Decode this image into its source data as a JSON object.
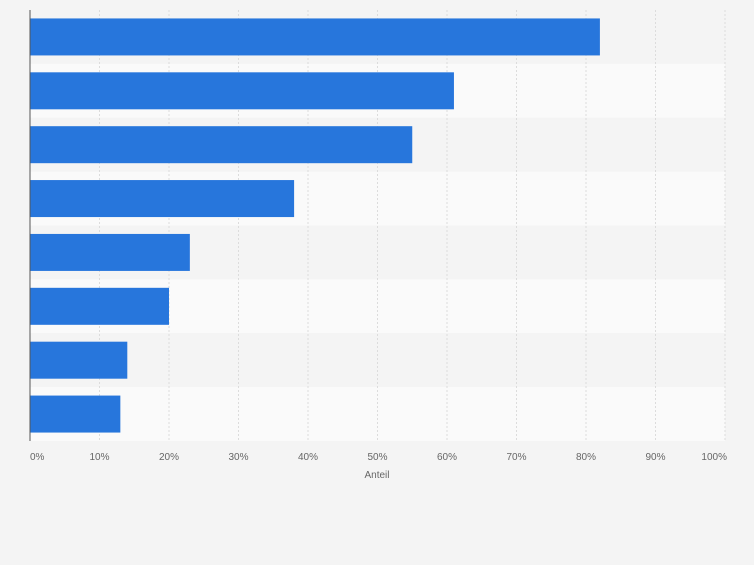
{
  "chart_data": {
    "type": "bar",
    "orientation": "horizontal",
    "categories": [
      "",
      "",
      "",
      "",
      "",
      "",
      "",
      ""
    ],
    "values": [
      82,
      61,
      55,
      38,
      23,
      20,
      14,
      13
    ],
    "title": "",
    "xlabel": "Anteil",
    "ylabel": "",
    "xlim": [
      0,
      100
    ],
    "xticks": [
      "0%",
      "10%",
      "20%",
      "30%",
      "40%",
      "50%",
      "60%",
      "70%",
      "80%",
      "90%",
      "100%"
    ],
    "grid": true,
    "legend": "none",
    "bar_color": "#2776dc"
  }
}
